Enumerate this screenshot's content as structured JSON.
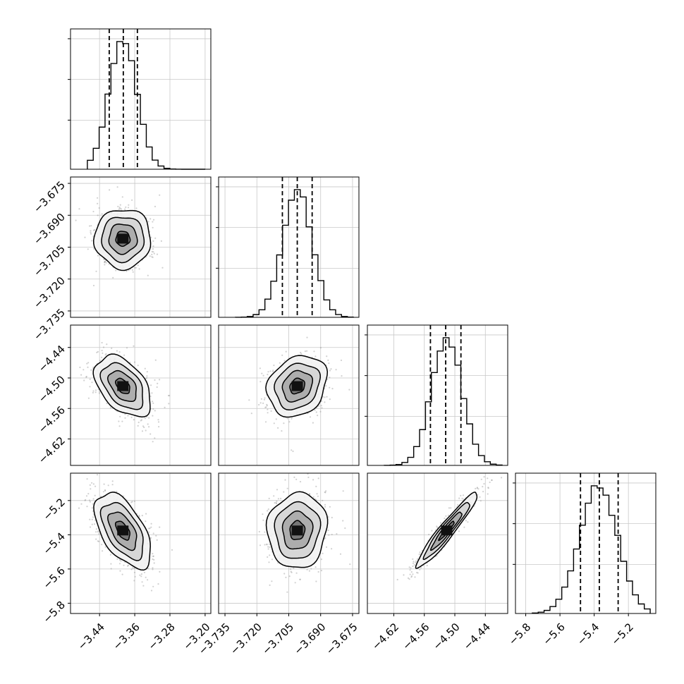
{
  "chart_data": {
    "type": "corner",
    "grid": true,
    "colors": {
      "axes": "#000000",
      "grid": "#c8c8c8",
      "scatter": "#9a9a9a",
      "contour": "#000000"
    },
    "parameters": [
      {
        "index": 0,
        "mean": -3.387,
        "q16": -3.418,
        "q50": -3.386,
        "q84": -3.354,
        "sigma": 0.032,
        "range": [
          -3.506,
          -3.187
        ],
        "ticks": [
          -3.44,
          -3.36,
          -3.28,
          -3.2
        ],
        "tick_labels": [
          "−3.44",
          "−3.36",
          "−3.28",
          "−3.20"
        ]
      },
      {
        "index": 1,
        "mean": -3.701,
        "q16": -3.708,
        "q50": -3.701,
        "q84": -3.694,
        "sigma": 0.007,
        "range": [
          -3.738,
          -3.672
        ],
        "ticks": [
          -3.735,
          -3.72,
          -3.705,
          -3.69,
          -3.675
        ],
        "tick_labels": [
          "−3.735",
          "−3.720",
          "−3.705",
          "−3.690",
          "−3.675"
        ]
      },
      {
        "index": 2,
        "mean": -4.516,
        "q16": -4.548,
        "q50": -4.518,
        "q84": -4.488,
        "sigma": 0.03,
        "range": [
          -4.672,
          -4.396
        ],
        "ticks": [
          -4.62,
          -4.56,
          -4.5,
          -4.44
        ],
        "tick_labels": [
          "−4.62",
          "−4.56",
          "−4.50",
          "−4.44"
        ]
      },
      {
        "index": 3,
        "mean": -5.375,
        "q16": -5.48,
        "q50": -5.37,
        "q84": -5.26,
        "sigma": 0.11,
        "range": [
          -5.86,
          -5.04
        ],
        "ticks": [
          -5.8,
          -5.6,
          -5.4,
          -5.2
        ],
        "tick_labels": [
          "−5.8",
          "−5.6",
          "−5.4",
          "−5.2"
        ]
      }
    ],
    "correlations": [
      {
        "i": 0,
        "j": 1,
        "rho": 0.0
      },
      {
        "i": 0,
        "j": 2,
        "rho": -0.45
      },
      {
        "i": 1,
        "j": 2,
        "rho": 0.2
      },
      {
        "i": 0,
        "j": 3,
        "rho": -0.55
      },
      {
        "i": 1,
        "j": 3,
        "rho": 0.05
      },
      {
        "i": 2,
        "j": 3,
        "rho": 0.95
      }
    ],
    "contour_levels_sigma": [
      0.5,
      1.0,
      1.5,
      2.0
    ]
  }
}
